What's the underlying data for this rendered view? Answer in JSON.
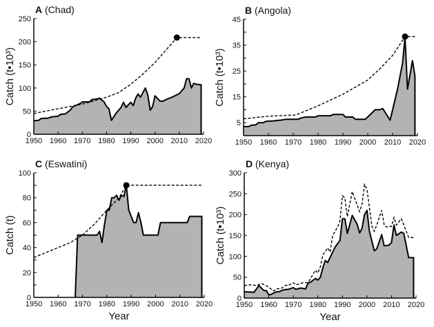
{
  "chart_data": [
    {
      "type": "area",
      "panel_letter": "A",
      "title": "(Chad)",
      "xlabel": "",
      "ylabel": "Catch (t•10³)",
      "xlim": [
        1950,
        2020
      ],
      "ylim": [
        0,
        250
      ],
      "xticks": [
        1950,
        1960,
        1970,
        1980,
        1990,
        2000,
        2010,
        2020
      ],
      "yticks": [
        0,
        50,
        100,
        150,
        200,
        250
      ],
      "ytick_labels": [
        "0",
        "50",
        "100",
        "150",
        "200",
        "250"
      ],
      "grid": false,
      "fill_color": "#b3b3b3",
      "catch": [
        [
          1950,
          29
        ],
        [
          1952,
          30
        ],
        [
          1953,
          34
        ],
        [
          1956,
          35
        ],
        [
          1957,
          37
        ],
        [
          1958,
          38
        ],
        [
          1960,
          39
        ],
        [
          1961,
          43
        ],
        [
          1963,
          44
        ],
        [
          1965,
          52
        ],
        [
          1966,
          59
        ],
        [
          1968,
          64
        ],
        [
          1969,
          66
        ],
        [
          1970,
          70
        ],
        [
          1973,
          70
        ],
        [
          1974,
          75
        ],
        [
          1976,
          76
        ],
        [
          1977,
          78
        ],
        [
          1979,
          70
        ],
        [
          1980,
          60
        ],
        [
          1981,
          55
        ],
        [
          1982,
          30
        ],
        [
          1984,
          46
        ],
        [
          1986,
          58
        ],
        [
          1987,
          69
        ],
        [
          1988,
          58
        ],
        [
          1990,
          69
        ],
        [
          1991,
          62
        ],
        [
          1992,
          78
        ],
        [
          1993,
          87
        ],
        [
          1994,
          80
        ],
        [
          1996,
          100
        ],
        [
          1997,
          85
        ],
        [
          1998,
          52
        ],
        [
          1999,
          60
        ],
        [
          2000,
          83
        ],
        [
          2002,
          72
        ],
        [
          2003,
          71
        ],
        [
          2005,
          76
        ],
        [
          2007,
          80
        ],
        [
          2010,
          88
        ],
        [
          2012,
          100
        ],
        [
          2013,
          120
        ],
        [
          2014,
          120
        ],
        [
          2015,
          100
        ],
        [
          2016,
          110
        ],
        [
          2017,
          108
        ],
        [
          2019,
          107
        ]
      ],
      "dashed": [
        [
          1950,
          45
        ],
        [
          1960,
          55
        ],
        [
          1970,
          65
        ],
        [
          1980,
          80
        ],
        [
          1985,
          90
        ],
        [
          1990,
          108
        ],
        [
          1995,
          130
        ],
        [
          2000,
          155
        ],
        [
          2005,
          185
        ],
        [
          2009,
          209
        ],
        [
          2019,
          209
        ]
      ],
      "marker": [
        2009,
        209
      ]
    },
    {
      "type": "area",
      "panel_letter": "B",
      "title": "(Angola)",
      "xlabel": "",
      "ylabel": "Catch (t•10³)",
      "xlim": [
        1950,
        2020
      ],
      "ylim": [
        0,
        45
      ],
      "xticks": [
        1950,
        1960,
        1970,
        1980,
        1990,
        2000,
        2010,
        2020
      ],
      "yticks": [
        5,
        10,
        15,
        20,
        25,
        30,
        35,
        40,
        45
      ],
      "ytick_labels": [
        "5",
        "",
        "15",
        "",
        "25",
        "",
        "35",
        "",
        "45"
      ],
      "grid": false,
      "fill_color": "#b3b3b3",
      "catch": [
        [
          1950,
          3.5
        ],
        [
          1952,
          3.5
        ],
        [
          1953,
          4
        ],
        [
          1955,
          4.2
        ],
        [
          1956,
          5
        ],
        [
          1958,
          5
        ],
        [
          1959,
          5.5
        ],
        [
          1962,
          5.7
        ],
        [
          1965,
          6
        ],
        [
          1967,
          6.3
        ],
        [
          1972,
          6.3
        ],
        [
          1973,
          6.8
        ],
        [
          1975,
          7.2
        ],
        [
          1979,
          7.2
        ],
        [
          1980,
          7.7
        ],
        [
          1985,
          7.7
        ],
        [
          1986,
          8.2
        ],
        [
          1990,
          8.2
        ],
        [
          1991,
          7.2
        ],
        [
          1994,
          7.2
        ],
        [
          1995,
          6.3
        ],
        [
          1999,
          6.3
        ],
        [
          2003,
          10
        ],
        [
          2005,
          10
        ],
        [
          2006,
          10.5
        ],
        [
          2009,
          6
        ],
        [
          2012,
          18
        ],
        [
          2014,
          28
        ],
        [
          2015,
          38
        ],
        [
          2016,
          18
        ],
        [
          2018,
          29
        ],
        [
          2019,
          23
        ]
      ],
      "dashed": [
        [
          1950,
          6.5
        ],
        [
          1960,
          7.5
        ],
        [
          1971,
          8
        ],
        [
          1980,
          11.5
        ],
        [
          1990,
          16
        ],
        [
          2000,
          21.5
        ],
        [
          2005,
          26
        ],
        [
          2010,
          31
        ],
        [
          2015,
          38.3
        ],
        [
          2019,
          38.3
        ]
      ],
      "marker": [
        2015,
        38.3
      ]
    },
    {
      "type": "area",
      "panel_letter": "C",
      "title": "(Eswatini)",
      "xlabel": "Year",
      "ylabel": "Catch (t)",
      "xlim": [
        1950,
        2020
      ],
      "ylim": [
        0,
        100
      ],
      "xticks": [
        1950,
        1960,
        1970,
        1980,
        1990,
        2000,
        2010,
        2020
      ],
      "yticks": [
        0,
        10,
        20,
        30,
        40,
        50,
        60,
        70,
        80,
        90,
        100
      ],
      "ytick_labels": [
        "0",
        "",
        "20",
        "",
        "40",
        "",
        "60",
        "",
        "80",
        "",
        "100"
      ],
      "grid": false,
      "fill_color": "#b3b3b3",
      "catch": [
        [
          1967,
          0
        ],
        [
          1968,
          50
        ],
        [
          1976,
          50
        ],
        [
          1977,
          53
        ],
        [
          1978,
          44
        ],
        [
          1979,
          58
        ],
        [
          1980,
          70
        ],
        [
          1981,
          70
        ],
        [
          1982,
          80
        ],
        [
          1983,
          80
        ],
        [
          1984,
          82
        ],
        [
          1985,
          78
        ],
        [
          1986,
          82
        ],
        [
          1987,
          81
        ],
        [
          1988,
          90
        ],
        [
          1989,
          70
        ],
        [
          1991,
          60
        ],
        [
          1992,
          60
        ],
        [
          1993,
          68
        ],
        [
          1994,
          60
        ],
        [
          1995,
          50
        ],
        [
          2001,
          50
        ],
        [
          2002,
          60
        ],
        [
          2013,
          60
        ],
        [
          2014,
          65
        ],
        [
          2019,
          65
        ]
      ],
      "dashed": [
        [
          1950,
          32
        ],
        [
          1955,
          36
        ],
        [
          1960,
          40
        ],
        [
          1965,
          44
        ],
        [
          1970,
          50
        ],
        [
          1975,
          59
        ],
        [
          1980,
          70
        ],
        [
          1985,
          80
        ],
        [
          1988,
          90
        ],
        [
          2019,
          90
        ]
      ],
      "marker": [
        1988,
        90
      ]
    },
    {
      "type": "area",
      "panel_letter": "D",
      "title": "(Kenya)",
      "xlabel": "Year",
      "ylabel": "Catch (t•10³)",
      "xlim": [
        1950,
        2020
      ],
      "ylim": [
        0,
        300
      ],
      "xticks": [
        1950,
        1960,
        1970,
        1980,
        1990,
        2000,
        2010,
        2020
      ],
      "yticks": [
        0,
        50,
        100,
        150,
        200,
        250,
        300
      ],
      "ytick_labels": [
        "0",
        "50",
        "100",
        "150",
        "200",
        "250",
        "300"
      ],
      "grid": false,
      "fill_color": "#b3b3b3",
      "catch": [
        [
          1950,
          15
        ],
        [
          1954,
          14
        ],
        [
          1956,
          30
        ],
        [
          1958,
          18
        ],
        [
          1959,
          18
        ],
        [
          1960,
          8
        ],
        [
          1961,
          9
        ],
        [
          1963,
          15
        ],
        [
          1964,
          15
        ],
        [
          1966,
          20
        ],
        [
          1968,
          21
        ],
        [
          1970,
          25
        ],
        [
          1971,
          21
        ],
        [
          1973,
          24
        ],
        [
          1974,
          23
        ],
        [
          1975,
          22
        ],
        [
          1976,
          36
        ],
        [
          1977,
          38
        ],
        [
          1979,
          47
        ],
        [
          1980,
          43
        ],
        [
          1981,
          50
        ],
        [
          1982,
          72
        ],
        [
          1983,
          90
        ],
        [
          1984,
          85
        ],
        [
          1986,
          110
        ],
        [
          1987,
          122
        ],
        [
          1989,
          138
        ],
        [
          1990,
          190
        ],
        [
          1991,
          190
        ],
        [
          1992,
          155
        ],
        [
          1994,
          198
        ],
        [
          1996,
          177
        ],
        [
          1997,
          156
        ],
        [
          1998,
          167
        ],
        [
          1999,
          200
        ],
        [
          2000,
          210
        ],
        [
          2001,
          160
        ],
        [
          2003,
          113
        ],
        [
          2004,
          118
        ],
        [
          2006,
          152
        ],
        [
          2007,
          125
        ],
        [
          2009,
          127
        ],
        [
          2010,
          133
        ],
        [
          2011,
          175
        ],
        [
          2012,
          150
        ],
        [
          2014,
          158
        ],
        [
          2015,
          155
        ],
        [
          2017,
          97
        ],
        [
          2019,
          97
        ]
      ],
      "dashed": [
        [
          1950,
          30
        ],
        [
          1953,
          32
        ],
        [
          1955,
          30
        ],
        [
          1957,
          35
        ],
        [
          1959,
          30
        ],
        [
          1962,
          17
        ],
        [
          1963,
          22
        ],
        [
          1965,
          23
        ],
        [
          1967,
          31
        ],
        [
          1968,
          30
        ],
        [
          1970,
          37
        ],
        [
          1971,
          32
        ],
        [
          1972,
          33
        ],
        [
          1974,
          37
        ],
        [
          1976,
          37
        ],
        [
          1979,
          67
        ],
        [
          1980,
          60
        ],
        [
          1981,
          75
        ],
        [
          1982,
          103
        ],
        [
          1984,
          120
        ],
        [
          1985,
          110
        ],
        [
          1986,
          150
        ],
        [
          1988,
          170
        ],
        [
          1989,
          185
        ],
        [
          1990,
          245
        ],
        [
          1991,
          240
        ],
        [
          1992,
          195
        ],
        [
          1994,
          255
        ],
        [
          1997,
          207
        ],
        [
          1998,
          225
        ],
        [
          1999,
          272
        ],
        [
          2000,
          260
        ],
        [
          2002,
          172
        ],
        [
          2003,
          160
        ],
        [
          2004,
          175
        ],
        [
          2006,
          210
        ],
        [
          2007,
          175
        ],
        [
          2008,
          170
        ],
        [
          2010,
          172
        ],
        [
          2011,
          193
        ],
        [
          2012,
          175
        ],
        [
          2014,
          190
        ],
        [
          2017,
          145
        ],
        [
          2019,
          145
        ]
      ],
      "marker": null
    }
  ]
}
